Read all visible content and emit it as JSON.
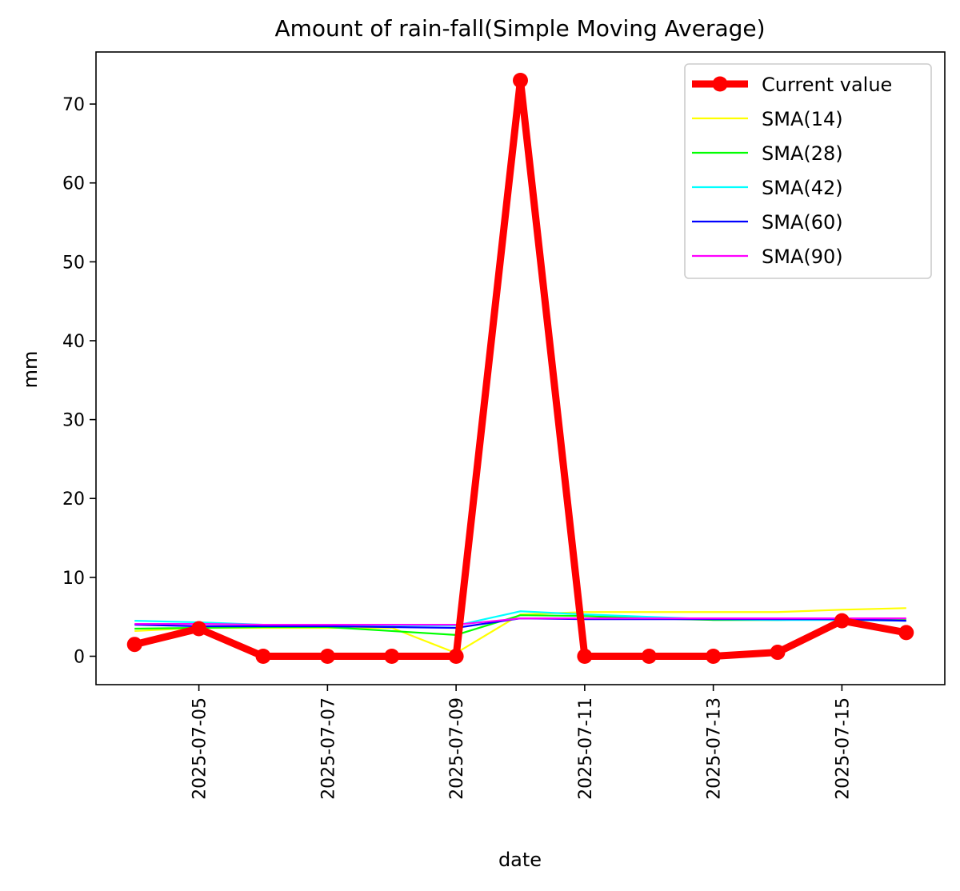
{
  "chart_data": {
    "type": "line",
    "title": "Amount of rain-fall(Simple Moving Average)",
    "xlabel": "date",
    "ylabel": "mm",
    "x": [
      "2025-07-04",
      "2025-07-05",
      "2025-07-06",
      "2025-07-07",
      "2025-07-08",
      "2025-07-09",
      "2025-07-10",
      "2025-07-11",
      "2025-07-12",
      "2025-07-13",
      "2025-07-14",
      "2025-07-15",
      "2025-07-16"
    ],
    "xlim": [
      "2025-07-03",
      "2025-07-16"
    ],
    "ylim": [
      -3.6,
      76.6
    ],
    "xticks": [
      "2025-07-05",
      "2025-07-07",
      "2025-07-09",
      "2025-07-11",
      "2025-07-13",
      "2025-07-15"
    ],
    "yticks": [
      0,
      10,
      20,
      30,
      40,
      50,
      60,
      70
    ],
    "legend_position": "top-right",
    "grid": false,
    "series": [
      {
        "name": "Current value",
        "color": "#ff0000",
        "markers": true,
        "values": [
          1.5,
          3.5,
          0,
          0,
          0,
          0,
          73,
          0,
          0,
          0,
          0.5,
          4.5,
          3
        ]
      },
      {
        "name": "SMA(14)",
        "color": "#ffff00",
        "markers": false,
        "values": [
          3.2,
          3.6,
          3.6,
          3.6,
          3.6,
          0.4,
          5.3,
          5.6,
          5.6,
          5.6,
          5.6,
          5.9,
          6.1
        ]
      },
      {
        "name": "SMA(28)",
        "color": "#00ff00",
        "markers": false,
        "values": [
          3.5,
          3.6,
          3.7,
          3.7,
          3.2,
          2.7,
          5.2,
          5.1,
          4.8,
          4.6,
          4.6,
          4.7,
          4.7
        ]
      },
      {
        "name": "SMA(42)",
        "color": "#00ffff",
        "markers": false,
        "values": [
          4.5,
          4.3,
          4.0,
          3.9,
          3.9,
          3.9,
          5.7,
          5.3,
          5.0,
          4.7,
          4.6,
          4.6,
          4.5
        ]
      },
      {
        "name": "SMA(60)",
        "color": "#0000ff",
        "markers": false,
        "values": [
          4.0,
          3.8,
          3.8,
          3.8,
          3.7,
          3.6,
          4.8,
          4.7,
          4.7,
          4.7,
          4.7,
          4.7,
          4.5
        ]
      },
      {
        "name": "SMA(90)",
        "color": "#ff00ff",
        "markers": false,
        "values": [
          4.1,
          4.1,
          4.0,
          4.0,
          4.0,
          4.0,
          4.8,
          4.8,
          4.8,
          4.8,
          4.8,
          4.8,
          4.8
        ]
      }
    ]
  }
}
